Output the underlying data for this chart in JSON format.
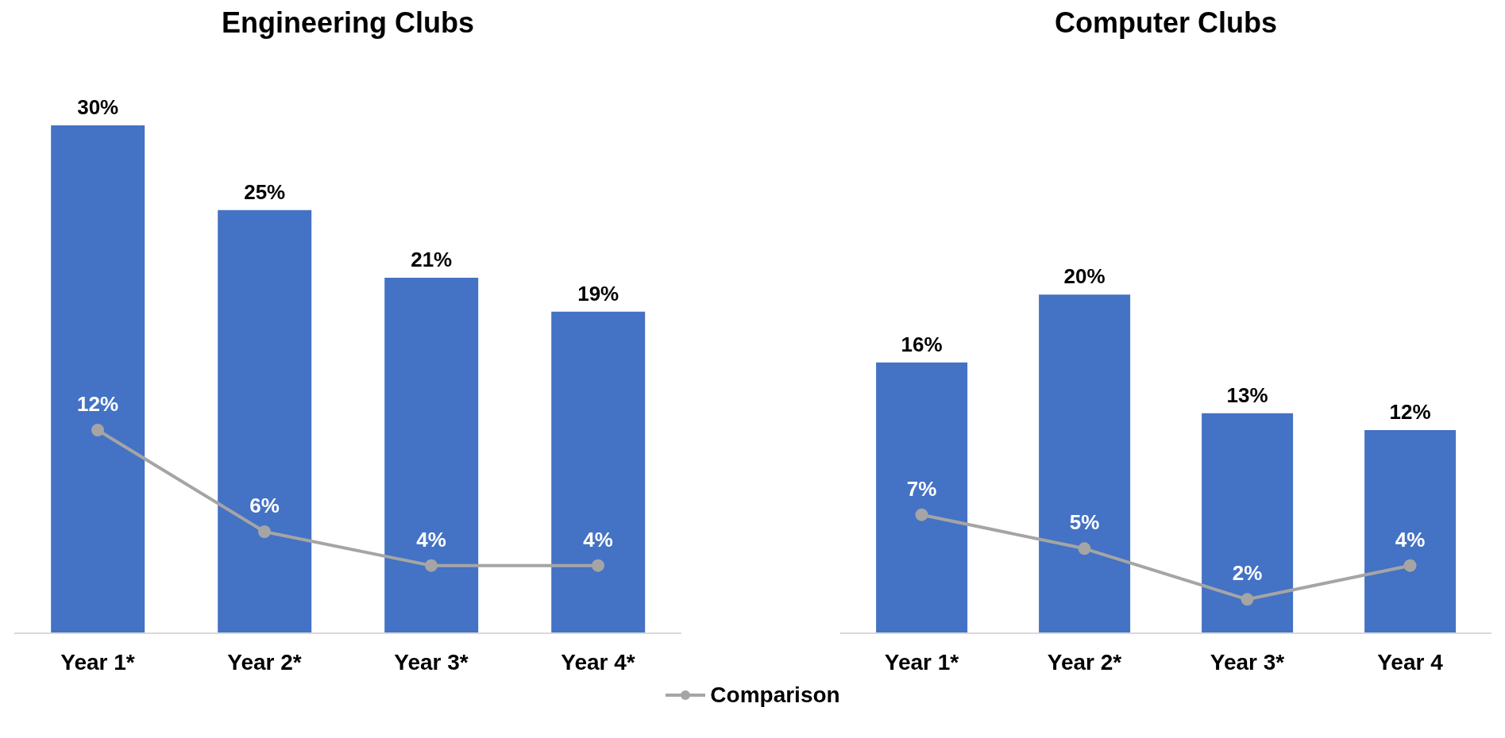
{
  "chart_data": [
    {
      "type": "bar",
      "title": "Engineering Clubs",
      "categories": [
        "Year 1*",
        "Year 2*",
        "Year 3*",
        "Year 4*"
      ],
      "legend": "bottom",
      "series": [
        {
          "color": "#4472c4",
          "values": [
            30,
            25,
            21,
            19
          ],
          "value_labels": [
            "30%",
            "25%",
            "21%",
            "19%"
          ]
        },
        {
          "name": "Comparison",
          "type": "line",
          "marker": "circle",
          "color": "#a5a5a5",
          "values": [
            12,
            6,
            4,
            4
          ],
          "value_labels": [
            "12%",
            "6%",
            "4%",
            "4%"
          ]
        }
      ]
    },
    {
      "type": "bar",
      "title": "Computer Clubs",
      "categories": [
        "Year 1*",
        "Year 2*",
        "Year 3*",
        "Year 4"
      ],
      "series": [
        {
          "color": "#4472c4",
          "values": [
            16,
            20,
            13,
            12
          ],
          "value_labels": [
            "16%",
            "20%",
            "13%",
            "12%"
          ]
        },
        {
          "name": "Comparison",
          "type": "line",
          "marker": "circle",
          "color": "#a5a5a5",
          "values": [
            7,
            5,
            2,
            4
          ],
          "value_labels": [
            "7%",
            "5%",
            "2%",
            "4%"
          ]
        }
      ]
    }
  ]
}
